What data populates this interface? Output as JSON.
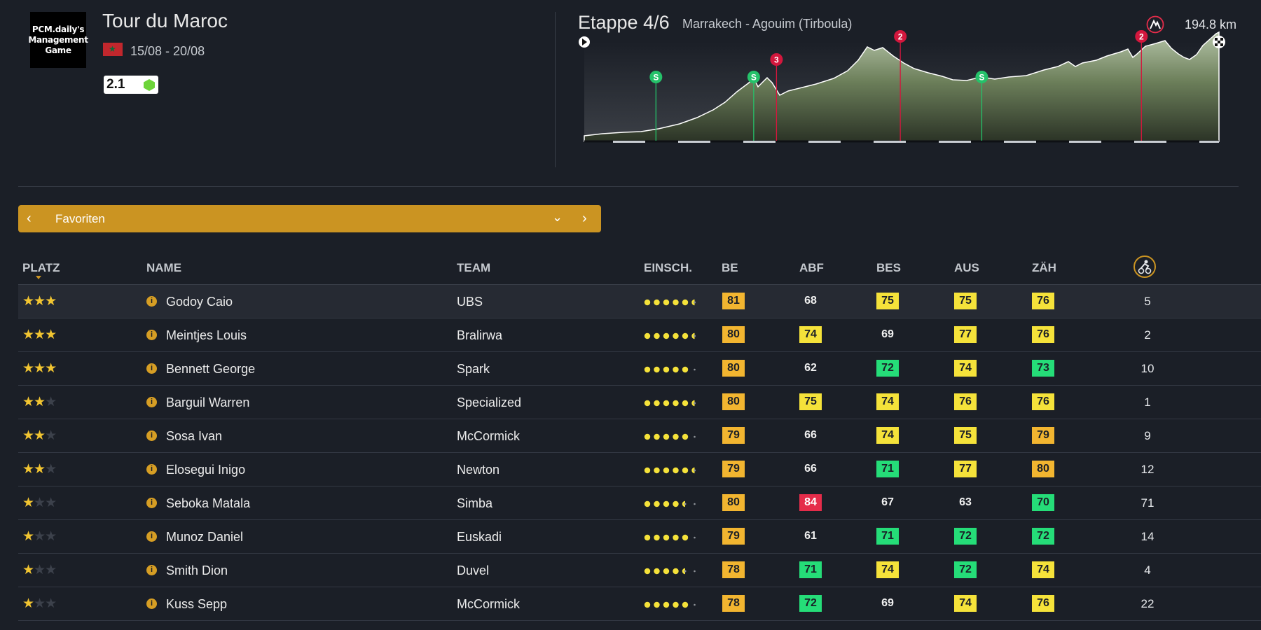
{
  "race": {
    "logo_text": "PCM.daily's Management Game",
    "title": "Tour du Maroc",
    "dates": "15/08 - 20/08",
    "category": "2.1"
  },
  "stage": {
    "title": "Etappe 4/6",
    "route": "Marrakech - Agouim (Tirboula)",
    "distance": "194.8 km",
    "markers": [
      {
        "type": "sprint",
        "label": "S",
        "km": 22
      },
      {
        "type": "sprint",
        "label": "S",
        "km": 52
      },
      {
        "type": "climb",
        "label": "3",
        "km": 59
      },
      {
        "type": "climb",
        "label": "2",
        "km": 97
      },
      {
        "type": "sprint",
        "label": "S",
        "km": 122
      },
      {
        "type": "climb",
        "label": "2",
        "km": 171
      }
    ]
  },
  "filter": {
    "label": "Favoriten"
  },
  "columns": {
    "platz": "PLATZ",
    "name": "NAME",
    "team": "TEAM",
    "einsch": "EINSCH.",
    "be": "BE",
    "abf": "ABF",
    "bes": "BES",
    "aus": "AUS",
    "zah": "ZÄH"
  },
  "colors": {
    "background": "#1b1f27",
    "accent": "#cb9422",
    "star": "#f2c531",
    "yellow": "#f5e23a",
    "orange": "#f2b530",
    "green": "#25dd78",
    "red": "#e52c4a"
  },
  "riders": [
    {
      "stars": 3,
      "name": "Godoy Caio",
      "team": "UBS",
      "form": 5.5,
      "be": {
        "v": "81",
        "c": "o"
      },
      "abf": {
        "v": "68",
        "c": "n"
      },
      "bes": {
        "v": "75",
        "c": "y"
      },
      "aus": {
        "v": "75",
        "c": "y"
      },
      "zah": {
        "v": "76",
        "c": "y"
      },
      "count": "5"
    },
    {
      "stars": 3,
      "name": "Meintjes Louis",
      "team": "Bralirwa",
      "form": 5.5,
      "be": {
        "v": "80",
        "c": "o"
      },
      "abf": {
        "v": "74",
        "c": "y"
      },
      "bes": {
        "v": "69",
        "c": "n"
      },
      "aus": {
        "v": "77",
        "c": "y"
      },
      "zah": {
        "v": "76",
        "c": "y"
      },
      "count": "2"
    },
    {
      "stars": 3,
      "name": "Bennett George",
      "team": "Spark",
      "form": 5,
      "be": {
        "v": "80",
        "c": "o"
      },
      "abf": {
        "v": "62",
        "c": "n"
      },
      "bes": {
        "v": "72",
        "c": "g"
      },
      "aus": {
        "v": "74",
        "c": "y"
      },
      "zah": {
        "v": "73",
        "c": "g"
      },
      "count": "10"
    },
    {
      "stars": 2,
      "name": "Barguil Warren",
      "team": "Specialized",
      "form": 5.5,
      "be": {
        "v": "80",
        "c": "o"
      },
      "abf": {
        "v": "75",
        "c": "y"
      },
      "bes": {
        "v": "74",
        "c": "y"
      },
      "aus": {
        "v": "76",
        "c": "y"
      },
      "zah": {
        "v": "76",
        "c": "y"
      },
      "count": "1"
    },
    {
      "stars": 2,
      "name": "Sosa Ivan",
      "team": "McCormick",
      "form": 5,
      "be": {
        "v": "79",
        "c": "o"
      },
      "abf": {
        "v": "66",
        "c": "n"
      },
      "bes": {
        "v": "74",
        "c": "y"
      },
      "aus": {
        "v": "75",
        "c": "y"
      },
      "zah": {
        "v": "79",
        "c": "o"
      },
      "count": "9"
    },
    {
      "stars": 2,
      "name": "Elosegui Inigo",
      "team": "Newton",
      "form": 5.5,
      "be": {
        "v": "79",
        "c": "o"
      },
      "abf": {
        "v": "66",
        "c": "n"
      },
      "bes": {
        "v": "71",
        "c": "g"
      },
      "aus": {
        "v": "77",
        "c": "y"
      },
      "zah": {
        "v": "80",
        "c": "o"
      },
      "count": "12"
    },
    {
      "stars": 1,
      "name": "Seboka Matala",
      "team": "Simba",
      "form": 4.5,
      "be": {
        "v": "80",
        "c": "o"
      },
      "abf": {
        "v": "84",
        "c": "r"
      },
      "bes": {
        "v": "67",
        "c": "n"
      },
      "aus": {
        "v": "63",
        "c": "n"
      },
      "zah": {
        "v": "70",
        "c": "g"
      },
      "count": "71"
    },
    {
      "stars": 1,
      "name": "Munoz Daniel",
      "team": "Euskadi",
      "form": 5,
      "be": {
        "v": "79",
        "c": "o"
      },
      "abf": {
        "v": "61",
        "c": "n"
      },
      "bes": {
        "v": "71",
        "c": "g"
      },
      "aus": {
        "v": "72",
        "c": "g"
      },
      "zah": {
        "v": "72",
        "c": "g"
      },
      "count": "14"
    },
    {
      "stars": 1,
      "name": "Smith Dion",
      "team": "Duvel",
      "form": 4.5,
      "be": {
        "v": "78",
        "c": "o"
      },
      "abf": {
        "v": "71",
        "c": "g"
      },
      "bes": {
        "v": "74",
        "c": "y"
      },
      "aus": {
        "v": "72",
        "c": "g"
      },
      "zah": {
        "v": "74",
        "c": "y"
      },
      "count": "4"
    },
    {
      "stars": 1,
      "name": "Kuss Sepp",
      "team": "McCormick",
      "form": 5,
      "be": {
        "v": "78",
        "c": "o"
      },
      "abf": {
        "v": "72",
        "c": "g"
      },
      "bes": {
        "v": "69",
        "c": "n"
      },
      "aus": {
        "v": "74",
        "c": "y"
      },
      "zah": {
        "v": "76",
        "c": "y"
      },
      "count": "22"
    }
  ]
}
